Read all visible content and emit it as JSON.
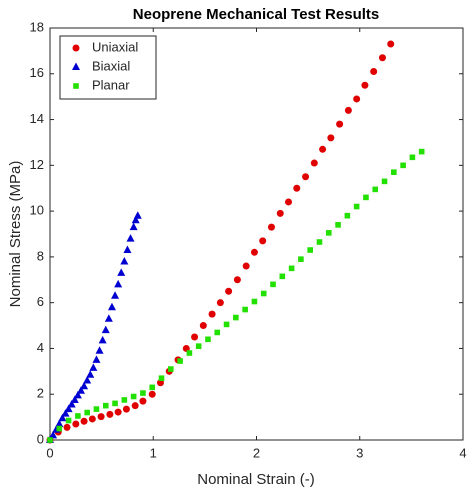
{
  "chart_data": {
    "type": "scatter",
    "title": "Neoprene Mechanical Test Results",
    "x_label": "Nominal Strain (-)",
    "y_label": "Nominal Stress (MPa)",
    "xlim": [
      0,
      4
    ],
    "xticks": [
      0,
      1,
      2,
      3,
      4
    ],
    "ylim": [
      0,
      18
    ],
    "yticks": [
      0,
      2,
      4,
      6,
      8,
      10,
      12,
      14,
      16,
      18
    ],
    "legend": "northwest",
    "series": [
      {
        "name": "Uniaxial",
        "color": "#e00000",
        "marker": "circle",
        "x": [
          0,
          0.08,
          0.165,
          0.25,
          0.33,
          0.41,
          0.495,
          0.58,
          0.66,
          0.74,
          0.825,
          0.9,
          0.99,
          1.07,
          1.155,
          1.24,
          1.32,
          1.4,
          1.485,
          1.57,
          1.65,
          1.73,
          1.815,
          1.9,
          1.98,
          2.06,
          2.145,
          2.23,
          2.31,
          2.39,
          2.475,
          2.56,
          2.64,
          2.72,
          2.805,
          2.89,
          2.97,
          3.05,
          3.135,
          3.22,
          3.3
        ],
        "values": [
          0,
          0.35,
          0.55,
          0.7,
          0.82,
          0.92,
          1.02,
          1.12,
          1.22,
          1.35,
          1.5,
          1.7,
          2.0,
          2.5,
          3.0,
          3.5,
          4.0,
          4.5,
          5.0,
          5.5,
          6.0,
          6.5,
          7.0,
          7.6,
          8.2,
          8.7,
          9.3,
          9.9,
          10.4,
          11.0,
          11.5,
          12.1,
          12.7,
          13.2,
          13.8,
          14.4,
          14.9,
          15.5,
          16.1,
          16.7,
          17.3
        ]
      },
      {
        "name": "Biaxial",
        "color": "#0000d0",
        "marker": "triangle",
        "x": [
          0,
          0.03,
          0.06,
          0.09,
          0.12,
          0.15,
          0.18,
          0.21,
          0.24,
          0.27,
          0.3,
          0.33,
          0.36,
          0.39,
          0.42,
          0.45,
          0.48,
          0.51,
          0.54,
          0.57,
          0.6,
          0.63,
          0.66,
          0.69,
          0.72,
          0.75,
          0.78,
          0.81,
          0.83,
          0.85
        ],
        "values": [
          0,
          0.2,
          0.45,
          0.7,
          0.95,
          1.15,
          1.35,
          1.55,
          1.75,
          1.95,
          2.15,
          2.35,
          2.6,
          2.85,
          3.15,
          3.5,
          3.9,
          4.35,
          4.8,
          5.3,
          5.8,
          6.3,
          6.8,
          7.3,
          7.8,
          8.3,
          8.8,
          9.3,
          9.6,
          9.8
        ]
      },
      {
        "name": "Planar",
        "color": "#22e000",
        "marker": "square",
        "x": [
          0,
          0.09,
          0.18,
          0.27,
          0.36,
          0.45,
          0.54,
          0.63,
          0.72,
          0.81,
          0.9,
          0.99,
          1.08,
          1.17,
          1.26,
          1.35,
          1.44,
          1.53,
          1.62,
          1.71,
          1.8,
          1.89,
          1.98,
          2.07,
          2.16,
          2.25,
          2.34,
          2.43,
          2.52,
          2.61,
          2.7,
          2.79,
          2.88,
          2.97,
          3.06,
          3.15,
          3.24,
          3.33,
          3.42,
          3.51,
          3.6
        ],
        "values": [
          0,
          0.5,
          0.85,
          1.05,
          1.2,
          1.35,
          1.5,
          1.6,
          1.75,
          1.9,
          2.05,
          2.3,
          2.7,
          3.1,
          3.45,
          3.8,
          4.1,
          4.4,
          4.7,
          5.05,
          5.35,
          5.7,
          6.05,
          6.4,
          6.8,
          7.15,
          7.5,
          7.9,
          8.3,
          8.65,
          9.05,
          9.4,
          9.8,
          10.2,
          10.6,
          10.95,
          11.3,
          11.7,
          12.0,
          12.35,
          12.6
        ]
      }
    ]
  }
}
